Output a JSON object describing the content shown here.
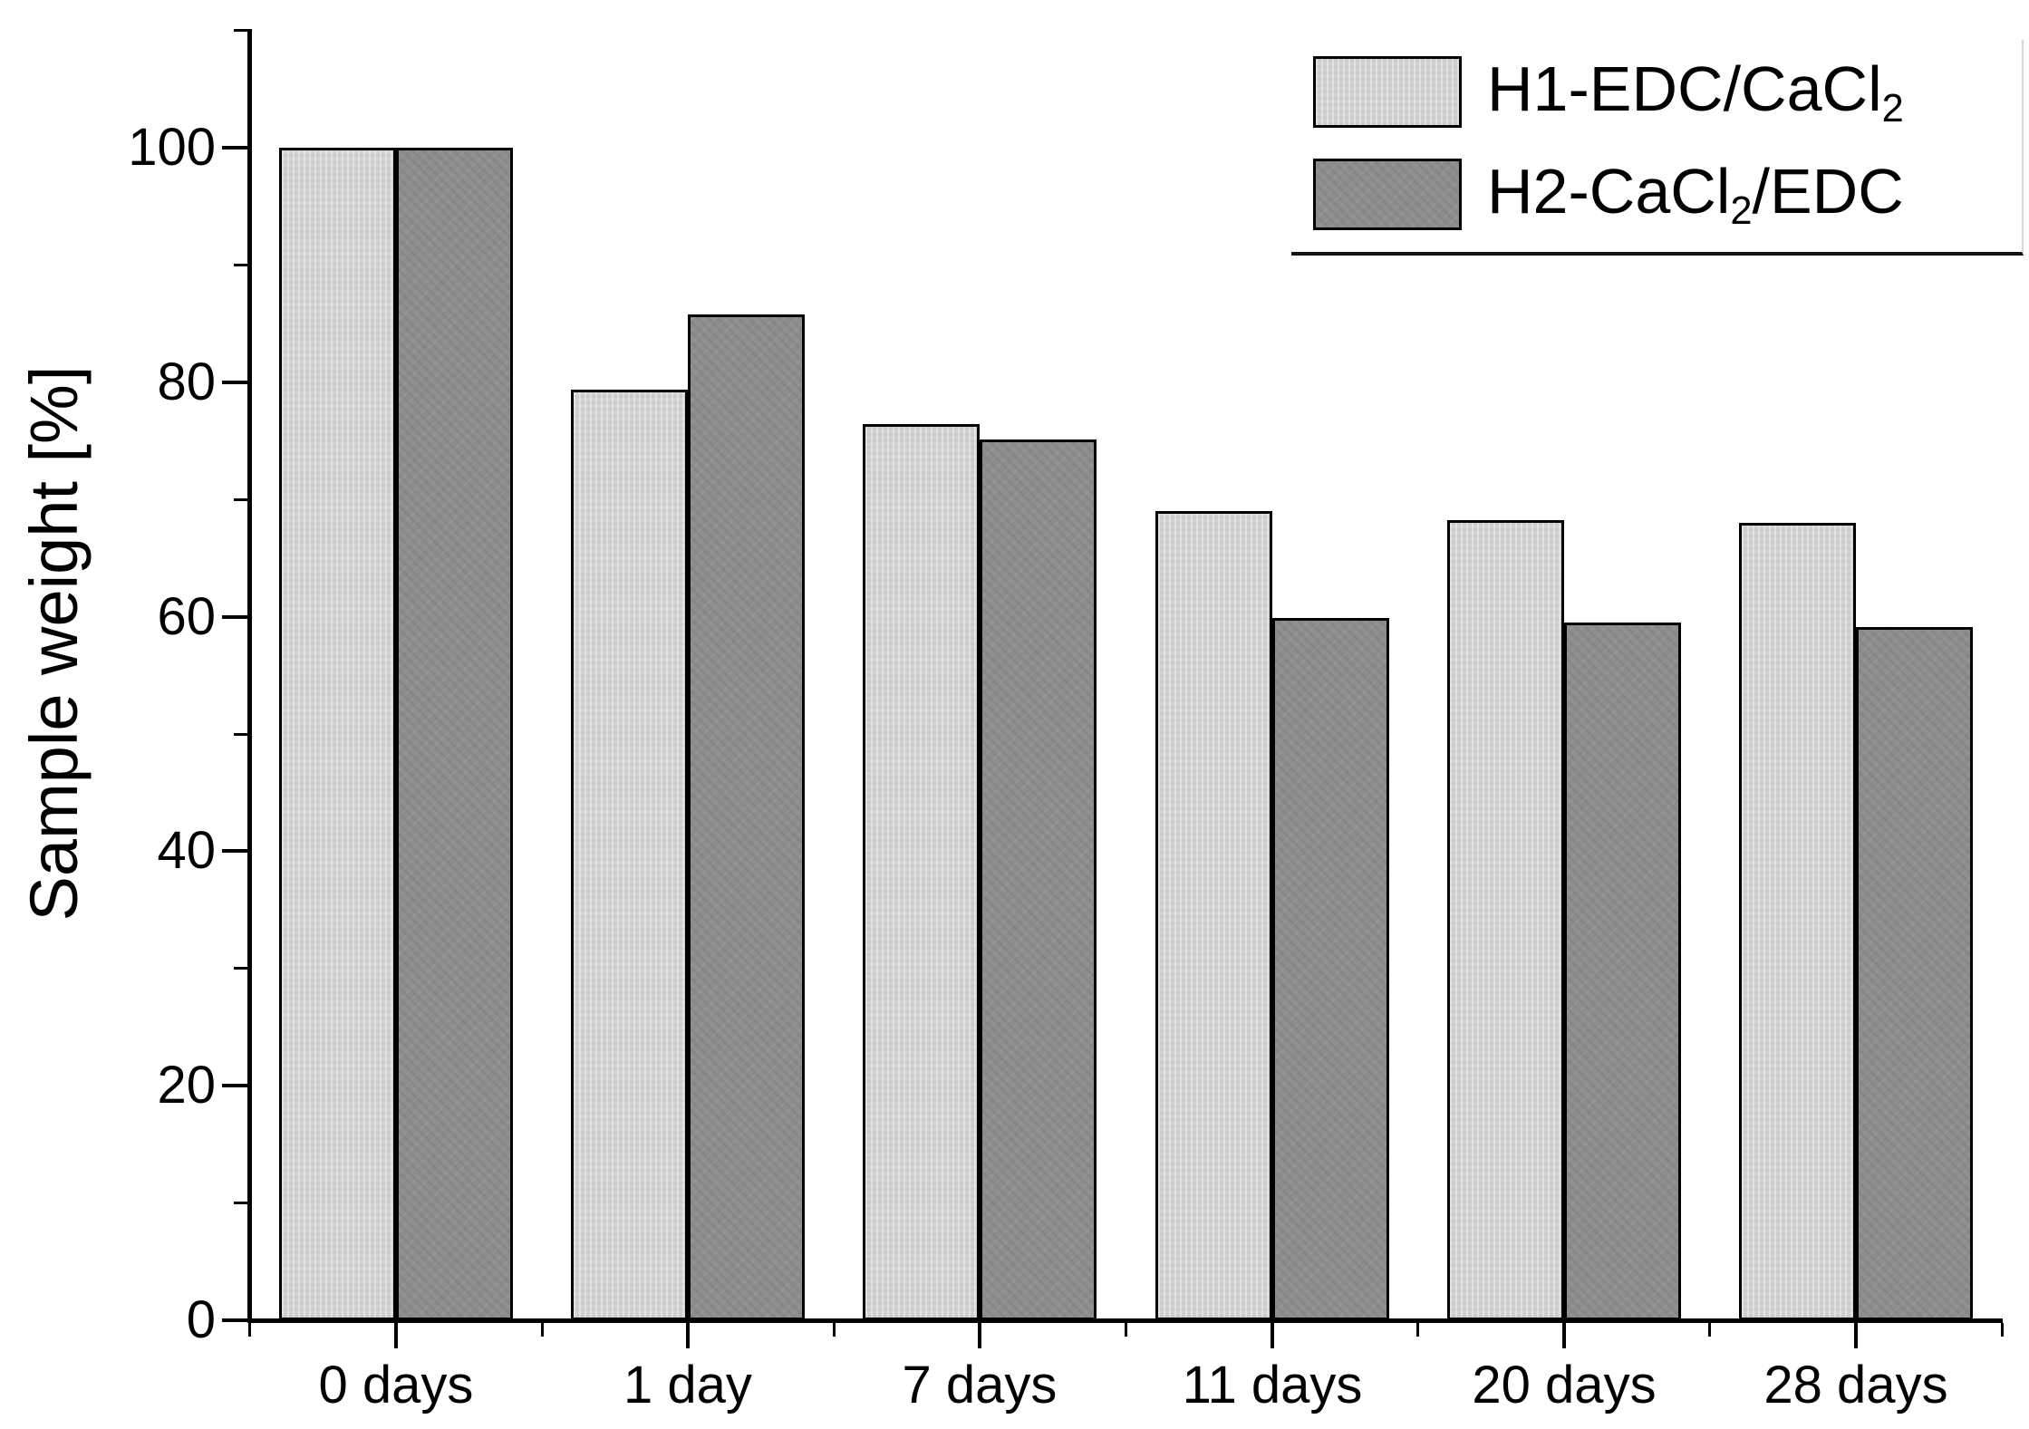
{
  "page": {
    "background": "#ffffff"
  },
  "chart_data": {
    "type": "bar",
    "title": "",
    "ylabel": "Sample weight [%]",
    "xlabel": "",
    "categories": [
      "0 days",
      "1 day",
      "7 days",
      "11 days",
      "20 days",
      "28 days"
    ],
    "series": [
      {
        "name": "H1-EDC/CaCl2",
        "label_parts": [
          {
            "t": "H1-EDC/CaCl"
          },
          {
            "t": "2",
            "sub": true
          }
        ],
        "color": "#d2d2d2",
        "texture": "fine-vertical-stipple",
        "values": [
          100,
          79.4,
          76.4,
          69.0,
          68.2,
          68.0
        ]
      },
      {
        "name": "H2-CaCl2/EDC",
        "label_parts": [
          {
            "t": "H2-CaCl"
          },
          {
            "t": "2",
            "sub": true
          },
          {
            "t": "/EDC"
          }
        ],
        "color": "#8e8e8e",
        "texture": "dot-stipple",
        "values": [
          100,
          85.8,
          75.1,
          59.9,
          59.5,
          59.1
        ]
      }
    ],
    "bar_outline_color": "#000000",
    "axis_color": "#000000",
    "ylim": [
      0,
      110
    ],
    "yticks_major": [
      0,
      20,
      40,
      60,
      80,
      100
    ],
    "yticks_minor": [
      10,
      30,
      50,
      70,
      90,
      110
    ],
    "legend_position": "top-right",
    "grid": false
  }
}
